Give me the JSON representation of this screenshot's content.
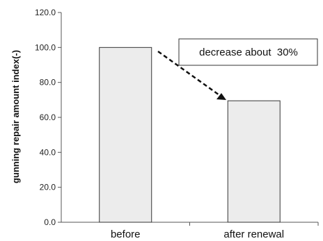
{
  "chart_data": {
    "type": "bar",
    "categories": [
      "before",
      "after renewal"
    ],
    "values": [
      100.0,
      69.5
    ],
    "ylabel": "gunning repair amount index(-)",
    "xlabel": "",
    "title": "",
    "ylim": [
      0,
      120
    ],
    "yticks": [
      "0.0",
      "20.0",
      "40.0",
      "60.0",
      "80.0",
      "100.0",
      "120.0"
    ],
    "grid": false,
    "annotation": "decrease about  30%",
    "colors": {
      "bar_fill": "#ececec",
      "bar_stroke": "#333333",
      "axis": "#555555"
    }
  }
}
